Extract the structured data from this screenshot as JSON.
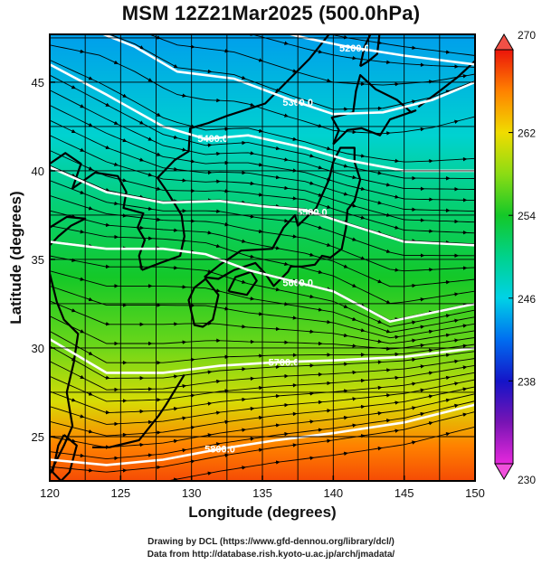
{
  "figure": {
    "title": "MSM 12Z21Mar2025 (500.0hPa)",
    "xlabel": "Longitude (degrees)",
    "ylabel": "Latitude  (degrees)",
    "credit_line1": "Drawing by DCL (https://www.gfd-dennou.org/library/dcl/)",
    "credit_line2": "Data from http://database.rish.kyoto-u.ac.jp/arch/jmadata/"
  },
  "map": {
    "lon_range": [
      120,
      150
    ],
    "lat_range": [
      22.5,
      47.7
    ],
    "lon_ticks": [
      "120",
      "125",
      "130",
      "135",
      "140",
      "145",
      "150"
    ],
    "lat_ticks": [
      "25",
      "30",
      "35",
      "40",
      "45"
    ],
    "gridlines": true,
    "vector_field": "wind streamlines, predominantly westerly",
    "coastline_color": "#000000",
    "contour_color": "#ffffff"
  },
  "chart_data": {
    "type": "heatmap",
    "title": "MSM 12Z21Mar2025 (500.0hPa)",
    "xlabel": "Longitude (degrees)",
    "ylabel": "Latitude  (degrees)",
    "xlim": [
      120,
      150
    ],
    "ylim": [
      22.5,
      47.7
    ],
    "color_field": "temperature (K)",
    "colorbar": {
      "min": 230,
      "max": 270,
      "ticks": [
        "270",
        "262",
        "254",
        "246",
        "238",
        "230"
      ]
    },
    "field_gradient": [
      {
        "lat": 47.5,
        "value": 244
      },
      {
        "lat": 42,
        "value": 247
      },
      {
        "lat": 38,
        "value": 251
      },
      {
        "lat": 34,
        "value": 254
      },
      {
        "lat": 30,
        "value": 257
      },
      {
        "lat": 27,
        "value": 261
      },
      {
        "lat": 24.5,
        "value": 266
      },
      {
        "lat": 22.5,
        "value": 268
      }
    ],
    "contours": [
      {
        "label": "5200.0",
        "points": [
          [
            120,
            50
          ],
          [
            128,
            49
          ],
          [
            133,
            48.5
          ],
          [
            135.5,
            48
          ],
          [
            138,
            47.5
          ],
          [
            141,
            47
          ],
          [
            145,
            46.5
          ],
          [
            150,
            46
          ]
        ]
      },
      {
        "label": "5300.0",
        "points": [
          [
            123.5,
            47.8
          ],
          [
            126,
            47
          ],
          [
            129,
            45.6
          ],
          [
            133,
            45.2
          ],
          [
            137,
            44
          ],
          [
            140,
            43.2
          ],
          [
            143.5,
            43.3
          ],
          [
            147,
            44
          ],
          [
            150,
            45
          ]
        ]
      },
      {
        "label": "5400.0",
        "points": [
          [
            120,
            46
          ],
          [
            124,
            44.3
          ],
          [
            128,
            42.5
          ],
          [
            131,
            41.8
          ],
          [
            134,
            42
          ],
          [
            138,
            41.3
          ],
          [
            141,
            40.6
          ],
          [
            145,
            40
          ],
          [
            150,
            40
          ]
        ]
      },
      {
        "label": "5500.0",
        "points": [
          [
            120,
            40.2
          ],
          [
            124,
            38.8
          ],
          [
            128,
            38.2
          ],
          [
            132,
            38.3
          ],
          [
            135,
            38.0
          ],
          [
            138,
            37.8
          ],
          [
            141,
            37.0
          ],
          [
            145,
            36
          ],
          [
            150,
            35.8
          ]
        ]
      },
      {
        "label": "5600.0",
        "points": [
          [
            120,
            36
          ],
          [
            124,
            35.6
          ],
          [
            128,
            35.6
          ],
          [
            131,
            35.3
          ],
          [
            134,
            34.4
          ],
          [
            137,
            33.8
          ],
          [
            140,
            33.2
          ],
          [
            144,
            31.5
          ],
          [
            150,
            32.5
          ]
        ]
      },
      {
        "label": "5700.0",
        "points": [
          [
            120,
            30.5
          ],
          [
            124,
            28.6
          ],
          [
            128,
            28.6
          ],
          [
            132,
            29.0
          ],
          [
            136,
            29.2
          ],
          [
            140,
            29.3
          ],
          [
            145,
            29.5
          ],
          [
            150,
            30
          ]
        ]
      },
      {
        "label": "5800.0",
        "points": [
          [
            120,
            23.7
          ],
          [
            124,
            23.4
          ],
          [
            128,
            23.7
          ],
          [
            132,
            24.3
          ],
          [
            136,
            24.8
          ],
          [
            140,
            25.2
          ],
          [
            145,
            25.8
          ],
          [
            150,
            26.8
          ]
        ]
      }
    ],
    "coastlines": [
      {
        "name": "asia-coast",
        "points": [
          [
            120,
            22.9
          ],
          [
            121,
            24.5
          ],
          [
            121.6,
            25.6
          ],
          [
            121.2,
            27.5
          ],
          [
            121.7,
            29.2
          ],
          [
            122.0,
            30.8
          ],
          [
            121.0,
            31.6
          ],
          [
            120.5,
            32.6
          ],
          [
            120.0,
            34.2
          ]
        ]
      },
      {
        "name": "shandong",
        "points": [
          [
            120,
            36.8
          ],
          [
            121.2,
            37.4
          ],
          [
            122.5,
            37.3
          ],
          [
            121.5,
            36.9
          ],
          [
            120.6,
            36.3
          ],
          [
            120,
            35.8
          ]
        ]
      },
      {
        "name": "korea-west",
        "points": [
          [
            126.5,
            34.4
          ],
          [
            126.3,
            35.2
          ],
          [
            126.7,
            36.1
          ],
          [
            126.2,
            36.8
          ],
          [
            126.6,
            37.6
          ],
          [
            125.2,
            37.9
          ],
          [
            125.4,
            38.8
          ],
          [
            124.8,
            39.7
          ],
          [
            123.2,
            39.9
          ],
          [
            121.6,
            39.0
          ],
          [
            122.2,
            40.4
          ],
          [
            121.1,
            41.0
          ],
          [
            120,
            40.4
          ]
        ]
      },
      {
        "name": "korea-east",
        "points": [
          [
            126.5,
            34.4
          ],
          [
            127.8,
            34.8
          ],
          [
            129.2,
            35.2
          ],
          [
            129.5,
            36.3
          ],
          [
            129.3,
            37.5
          ],
          [
            128.3,
            38.8
          ],
          [
            127.6,
            39.6
          ],
          [
            128.8,
            40.6
          ],
          [
            129.8,
            41.1
          ],
          [
            129.9,
            42.4
          ],
          [
            131.2,
            42.7
          ],
          [
            132.5,
            43.1
          ],
          [
            135.2,
            43.8
          ],
          [
            138.3,
            46.3
          ],
          [
            140.0,
            48.0
          ]
        ]
      },
      {
        "name": "sakhalin",
        "points": [
          [
            141.9,
            45.9
          ],
          [
            142.2,
            47.0
          ],
          [
            142.8,
            48.0
          ]
        ]
      },
      {
        "name": "sakhalin-east",
        "points": [
          [
            143.3,
            48.0
          ],
          [
            143.1,
            46.6
          ],
          [
            142.5,
            46.2
          ],
          [
            141.9,
            45.9
          ]
        ]
      },
      {
        "name": "kyushu",
        "points": [
          [
            130.2,
            33.4
          ],
          [
            129.8,
            32.7
          ],
          [
            130.2,
            31.3
          ],
          [
            130.8,
            31.2
          ],
          [
            131.5,
            31.6
          ],
          [
            131.9,
            33.0
          ],
          [
            131.0,
            33.9
          ],
          [
            130.2,
            33.4
          ]
        ]
      },
      {
        "name": "shikoku",
        "points": [
          [
            132.6,
            33.2
          ],
          [
            133.9,
            33.0
          ],
          [
            134.6,
            33.8
          ],
          [
            134.2,
            34.3
          ],
          [
            133.1,
            34.0
          ],
          [
            132.6,
            33.2
          ]
        ]
      },
      {
        "name": "honshu",
        "points": [
          [
            130.9,
            34.0
          ],
          [
            132.0,
            34.7
          ],
          [
            133.5,
            35.5
          ],
          [
            135.7,
            35.6
          ],
          [
            136.5,
            36.8
          ],
          [
            137.3,
            37.5
          ],
          [
            137.5,
            36.9
          ],
          [
            138.8,
            37.9
          ],
          [
            139.7,
            39.5
          ],
          [
            140.0,
            40.5
          ],
          [
            140.5,
            41.3
          ],
          [
            141.5,
            41.3
          ],
          [
            141.5,
            40.5
          ],
          [
            141.9,
            39.5
          ],
          [
            141.5,
            38.3
          ],
          [
            141.0,
            37.8
          ],
          [
            140.9,
            36.8
          ],
          [
            140.6,
            35.6
          ],
          [
            139.8,
            35.1
          ],
          [
            139.2,
            35.2
          ],
          [
            138.7,
            34.7
          ],
          [
            137.8,
            34.6
          ],
          [
            137.0,
            34.6
          ],
          [
            136.8,
            34.3
          ],
          [
            135.8,
            33.5
          ],
          [
            135.2,
            34.2
          ],
          [
            134.5,
            34.8
          ],
          [
            133.0,
            34.4
          ],
          [
            131.9,
            33.9
          ],
          [
            130.9,
            34.0
          ]
        ]
      },
      {
        "name": "hokkaido",
        "points": [
          [
            140.0,
            41.5
          ],
          [
            140.4,
            42.3
          ],
          [
            139.9,
            43.0
          ],
          [
            141.4,
            43.3
          ],
          [
            141.6,
            44.5
          ],
          [
            141.9,
            45.4
          ],
          [
            143.0,
            44.6
          ],
          [
            144.5,
            44.0
          ],
          [
            145.5,
            43.3
          ],
          [
            145.8,
            43.4
          ],
          [
            144.0,
            42.9
          ],
          [
            143.3,
            42.0
          ],
          [
            142.0,
            42.4
          ],
          [
            141.0,
            42.3
          ],
          [
            140.0,
            41.5
          ]
        ]
      },
      {
        "name": "kuril",
        "points": [
          [
            146.0,
            43.6
          ],
          [
            147.5,
            44.5
          ],
          [
            148.8,
            45.3
          ],
          [
            150,
            46.2
          ]
        ]
      },
      {
        "name": "taiwan",
        "points": [
          [
            121.0,
            25.1
          ],
          [
            121.9,
            24.5
          ],
          [
            121.4,
            23.0
          ],
          [
            120.8,
            22.5
          ],
          [
            120.2,
            23.0
          ],
          [
            120.6,
            24.5
          ],
          [
            121.0,
            25.1
          ]
        ]
      },
      {
        "name": "ryukyu",
        "points": [
          [
            129.5,
            28.5
          ],
          [
            128.2,
            26.8
          ],
          [
            127.7,
            26.2
          ],
          [
            126.3,
            24.8
          ],
          [
            124.2,
            24.4
          ],
          [
            123.0,
            24.4
          ]
        ]
      }
    ]
  }
}
